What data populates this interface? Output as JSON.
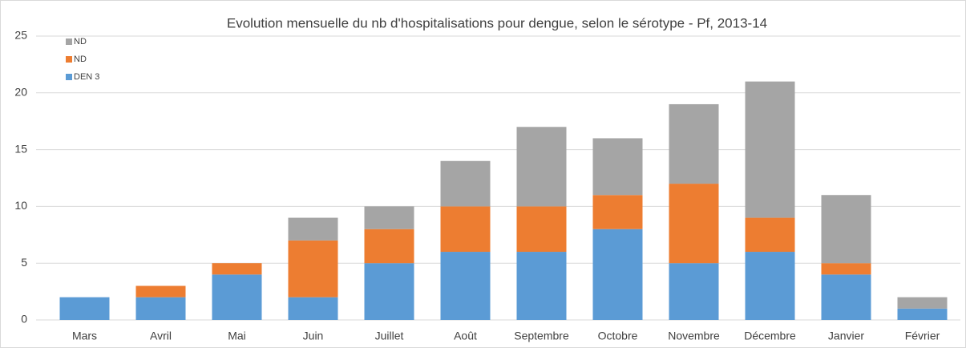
{
  "chart_data": {
    "type": "stacked_bar",
    "title": "Evolution mensuelle du nb d'hospitalisations pour dengue, selon le sérotype - Pf, 2013-14",
    "categories": [
      "Mars",
      "Avril",
      "Mai",
      "Juin",
      "Juillet",
      "Août",
      "Septembre",
      "Octobre",
      "Novembre",
      "Décembre",
      "Janvier",
      "Février"
    ],
    "series": [
      {
        "name": "DEN 3",
        "color": "#5b9bd5",
        "values": [
          2,
          2,
          4,
          2,
          5,
          6,
          6,
          8,
          5,
          6,
          4,
          1
        ]
      },
      {
        "name": "ND",
        "color": "#ed7d31",
        "values": [
          0,
          1,
          1,
          5,
          3,
          4,
          4,
          3,
          7,
          3,
          1,
          0
        ]
      },
      {
        "name": "ND",
        "color": "#a5a5a5",
        "values": [
          0,
          0,
          0,
          2,
          2,
          4,
          7,
          5,
          7,
          12,
          6,
          1
        ]
      }
    ],
    "ylim": [
      0,
      25
    ],
    "yticks": [
      0,
      5,
      10,
      15,
      20,
      25
    ],
    "grid": true,
    "legend": "top-left"
  }
}
